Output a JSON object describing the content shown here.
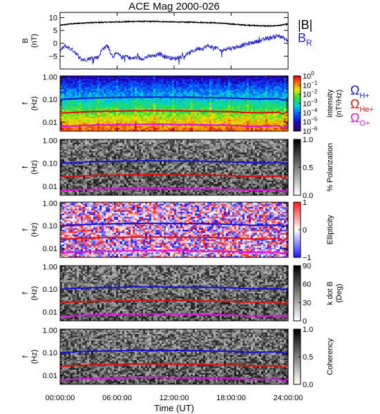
{
  "title": "ACE Mag 2000-026",
  "colors": {
    "B_mag": "#000000",
    "B_R": "#1f1fd6",
    "omega_H": "#1212d8",
    "omega_He": "#e01010",
    "omega_O": "#e010e0",
    "text": "#000000"
  },
  "chart_data": [
    {
      "type": "line",
      "panel": "magnetic-field",
      "ylabel": "B",
      "yunits": "(nT)",
      "ylim": [
        -10,
        12
      ],
      "yticks": [
        -5,
        0,
        5,
        10
      ],
      "ytick_labels": [
        "−5",
        "0",
        "5",
        "10"
      ],
      "x_range_hours": [
        0,
        24
      ],
      "series": [
        {
          "name": "|B|",
          "color": "#000000",
          "x": [
            0,
            1,
            2,
            3,
            4,
            5,
            6,
            7,
            8,
            9,
            10,
            11,
            12,
            13,
            14,
            15,
            16,
            17,
            18,
            19,
            20,
            21,
            22,
            23,
            24
          ],
          "y": [
            7,
            7.5,
            7.8,
            8,
            8.1,
            8.2,
            8.3,
            8.4,
            8.5,
            8.5,
            8.5,
            8.4,
            8.3,
            8.2,
            8.2,
            8.1,
            8,
            7.8,
            7.5,
            7.2,
            7,
            6.8,
            6.7,
            6.9,
            7.5
          ]
        },
        {
          "name": "B",
          "subscript": "R",
          "color": "#1f1fd6",
          "x": [
            0,
            0.5,
            1,
            1.5,
            2,
            2.5,
            3,
            3.5,
            4,
            4.5,
            5,
            5.5,
            6,
            6.5,
            7,
            7.5,
            8,
            8.5,
            9,
            9.5,
            10,
            10.5,
            11,
            11.5,
            12,
            12.5,
            13,
            13.5,
            14,
            14.5,
            15,
            15.5,
            16,
            16.5,
            17,
            17.5,
            18,
            18.5,
            19,
            19.5,
            20,
            20.5,
            21,
            21.5,
            22,
            22.5,
            23,
            23.5,
            24
          ],
          "y": [
            -3,
            -1,
            -2,
            -3,
            -5.5,
            -6.5,
            -6,
            -5.5,
            -5.5,
            -2,
            -1,
            -5,
            -4,
            -5.5,
            -5,
            -6,
            -5.5,
            -6,
            -5.5,
            -5,
            -5,
            -4,
            -5,
            -5.5,
            -6,
            -5.5,
            -5,
            -4,
            -3,
            -2,
            -2,
            -1,
            -1.5,
            -2,
            -3,
            -2,
            -2,
            -1.5,
            -1,
            -0.5,
            0,
            0.5,
            1,
            1.5,
            2,
            2.5,
            3,
            2,
            1
          ]
        }
      ]
    },
    {
      "type": "heatmap",
      "panel": "intensity",
      "ylabel": "f",
      "yunits": "(Hz)",
      "yscale": "log",
      "ylim": [
        0.004,
        1.1
      ],
      "yticks": [
        0.01,
        0.1,
        1
      ],
      "ytick_labels": [
        "0.01",
        "0.10",
        "1.00"
      ],
      "colorbar": {
        "label": "Intensity",
        "units": "(nT²/Hz)",
        "scale": "log",
        "range": [
          1e-06,
          1
        ],
        "tick_exponents": [
          0,
          -1,
          -2,
          -3,
          -4,
          -5,
          -6
        ],
        "colormap": "rainbow"
      },
      "gyrofrequency_lines": [
        "H+",
        "He+",
        "O+"
      ]
    },
    {
      "type": "heatmap",
      "panel": "polarization",
      "ylabel": "f",
      "yunits": "(Hz)",
      "yscale": "log",
      "yticks": [
        0.01,
        0.1,
        1
      ],
      "ytick_labels": [
        "0.01",
        "0.10",
        "1.00"
      ],
      "colorbar": {
        "label": "% Polarization",
        "range": [
          0,
          1
        ],
        "ticks": [
          0.0,
          0.5,
          1.0
        ],
        "tick_labels": [
          "0.0",
          "0.5",
          "1.0"
        ],
        "colormap": "gray"
      },
      "gyrofrequency_lines": [
        "H+",
        "He+",
        "O+"
      ]
    },
    {
      "type": "heatmap",
      "panel": "ellipticity",
      "ylabel": "f",
      "yunits": "(Hz)",
      "yscale": "log",
      "yticks": [
        0.01,
        0.1,
        1
      ],
      "ytick_labels": [
        "0.01",
        "0.10",
        "1.00"
      ],
      "colorbar": {
        "label": "Ellipticity",
        "range": [
          -1,
          1
        ],
        "ticks": [
          -1,
          0,
          1
        ],
        "tick_labels": [
          "−1",
          "0",
          "1"
        ],
        "colormap": "blue-white-red"
      },
      "gyrofrequency_lines": [
        "H+",
        "He+",
        "O+"
      ]
    },
    {
      "type": "heatmap",
      "panel": "k-dot-b",
      "ylabel": "f",
      "yunits": "(Hz)",
      "yscale": "log",
      "yticks": [
        0.01,
        0.1,
        1
      ],
      "ytick_labels": [
        "0.01",
        "0.10",
        "1.00"
      ],
      "colorbar": {
        "label": "k dot B",
        "units": "(Deg)",
        "range": [
          0,
          90
        ],
        "ticks": [
          0,
          30,
          60,
          90
        ],
        "tick_labels": [
          "0",
          "30",
          "60",
          "90"
        ],
        "colormap": "gray"
      },
      "gyrofrequency_lines": [
        "H+",
        "He+",
        "O+"
      ]
    },
    {
      "type": "heatmap",
      "panel": "coherency",
      "ylabel": "f",
      "yunits": "(Hz)",
      "yscale": "log",
      "yticks": [
        0.01,
        0.1,
        1
      ],
      "ytick_labels": [
        "0.01",
        "0.10",
        "1.00"
      ],
      "colorbar": {
        "label": "Coherency",
        "range": [
          0,
          1
        ],
        "ticks": [
          0.0,
          0.5,
          1.0
        ],
        "tick_labels": [
          "0.0",
          "0.5",
          "1.0"
        ],
        "colormap": "gray"
      },
      "gyrofrequency_lines": [
        "H+",
        "He+",
        "O+"
      ]
    }
  ],
  "gyrofrequencies": {
    "hours": [
      0,
      1,
      2,
      3,
      4,
      5,
      6,
      7,
      8,
      9,
      10,
      11,
      12,
      13,
      14,
      15,
      16,
      17,
      18,
      19,
      20,
      21,
      22,
      23,
      23.5,
      24
    ],
    "H+": [
      0.1,
      0.105,
      0.11,
      0.115,
      0.118,
      0.12,
      0.122,
      0.124,
      0.126,
      0.127,
      0.127,
      0.126,
      0.125,
      0.124,
      0.123,
      0.122,
      0.12,
      0.118,
      0.115,
      0.11,
      0.105,
      0.105,
      0.105,
      0.11,
      0.09,
      0.115
    ],
    "He+": [
      0.025,
      0.026,
      0.0275,
      0.029,
      0.0295,
      0.03,
      0.0305,
      0.031,
      0.0315,
      0.032,
      0.032,
      0.0315,
      0.031,
      0.031,
      0.0308,
      0.0305,
      0.03,
      0.0295,
      0.029,
      0.0275,
      0.026,
      0.026,
      0.026,
      0.0275,
      0.022,
      0.029
    ],
    "O+": [
      0.0063,
      0.0066,
      0.0069,
      0.0072,
      0.0074,
      0.0075,
      0.0076,
      0.0078,
      0.0079,
      0.008,
      0.008,
      0.0079,
      0.0078,
      0.0077,
      0.0077,
      0.0076,
      0.0075,
      0.0074,
      0.0072,
      0.0069,
      0.0066,
      0.0066,
      0.0066,
      0.0069,
      0.0055,
      0.0072
    ]
  },
  "legend": {
    "bmag": "|B|",
    "br_main": "B",
    "br_sub": "R",
    "omega": "Ω",
    "h_sub": "H+",
    "he_sub": "He+",
    "o_sub": "O+"
  },
  "xaxis": {
    "label": "Time (UT)",
    "ticks_hours": [
      0,
      6,
      12,
      18,
      24
    ],
    "tick_labels": [
      "00:00:00",
      "06:00:00",
      "12:00:00",
      "18:00:00",
      "24:00:00"
    ]
  }
}
